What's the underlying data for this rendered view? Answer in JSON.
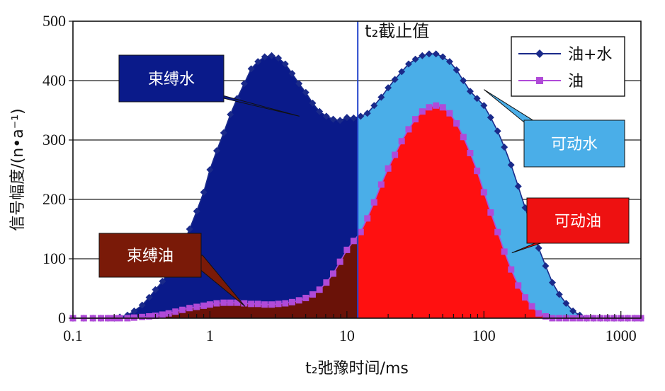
{
  "chart_data": {
    "type": "area",
    "xlabel": "t₂弛豫时间/ms",
    "ylabel": "信号幅度/(n•a⁻¹)",
    "x_scale": "log",
    "xlim": [
      0.1,
      1400
    ],
    "ylim": [
      0,
      500
    ],
    "x_ticks": [
      "0.1",
      "1",
      "10",
      "100",
      "1000"
    ],
    "y_ticks": [
      "0",
      "100",
      "200",
      "300",
      "400",
      "500"
    ],
    "grid": "horizontal",
    "legend_position": "top-right",
    "cutoff": {
      "label": "t₂截止值",
      "x": 12
    },
    "annotations": [
      {
        "id": "bound-water",
        "text": "束缚水",
        "color": "#0a1a8a",
        "target": [
          4.5,
          340
        ]
      },
      {
        "id": "movable-water",
        "text": "可动水",
        "color": "#4aaee8",
        "target": [
          100,
          385
        ]
      },
      {
        "id": "bound-oil",
        "text": "束缚油",
        "color": "#7a1a08",
        "target": [
          1.8,
          20
        ]
      },
      {
        "id": "movable-oil",
        "text": "可动油",
        "color": "#ee1111",
        "target": [
          160,
          110
        ]
      }
    ],
    "series": [
      {
        "name": "油+水",
        "color": "#1a2a8a",
        "marker": "diamond",
        "x": [
          0.1,
          0.12,
          0.14,
          0.16,
          0.18,
          0.2,
          0.22,
          0.25,
          0.28,
          0.32,
          0.36,
          0.4,
          0.45,
          0.5,
          0.56,
          0.63,
          0.71,
          0.8,
          0.9,
          1.0,
          1.12,
          1.26,
          1.41,
          1.58,
          1.78,
          2.0,
          2.24,
          2.51,
          2.82,
          3.16,
          3.55,
          3.98,
          4.47,
          5.01,
          5.62,
          6.31,
          7.08,
          7.94,
          8.91,
          10,
          11.2,
          12.6,
          14.1,
          15.8,
          17.8,
          20,
          22.4,
          25.1,
          28.2,
          31.6,
          35.5,
          39.8,
          44.7,
          50.1,
          56.2,
          63.1,
          70.8,
          79.4,
          89.1,
          100,
          112,
          126,
          141,
          158,
          178,
          200,
          224,
          251,
          282,
          316,
          355,
          398,
          447,
          501,
          562,
          631,
          708,
          794,
          891,
          1000,
          1120,
          1260,
          1400
        ],
        "values": [
          0,
          0,
          0,
          0,
          0,
          0,
          2,
          5,
          12,
          22,
          35,
          48,
          62,
          78,
          98,
          122,
          150,
          180,
          212,
          250,
          282,
          312,
          343,
          370,
          395,
          420,
          432,
          440,
          442,
          438,
          428,
          412,
          395,
          380,
          362,
          348,
          340,
          335,
          333,
          338,
          337,
          340,
          345,
          358,
          372,
          388,
          402,
          415,
          428,
          436,
          442,
          445,
          445,
          440,
          432,
          418,
          400,
          382,
          370,
          358,
          338,
          315,
          288,
          258,
          222,
          186,
          152,
          118,
          88,
          60,
          40,
          25,
          12,
          5,
          0,
          0,
          0,
          0,
          0,
          0,
          0,
          0,
          0
        ]
      },
      {
        "name": "油",
        "color": "#b04ad8",
        "marker": "square",
        "x": [
          0.1,
          0.12,
          0.14,
          0.16,
          0.18,
          0.2,
          0.22,
          0.25,
          0.28,
          0.32,
          0.36,
          0.4,
          0.45,
          0.5,
          0.56,
          0.63,
          0.71,
          0.8,
          0.9,
          1.0,
          1.12,
          1.26,
          1.41,
          1.58,
          1.78,
          2.0,
          2.24,
          2.51,
          2.82,
          3.16,
          3.55,
          3.98,
          4.47,
          5.01,
          5.62,
          6.31,
          7.08,
          7.94,
          8.91,
          10,
          11.2,
          12.6,
          14.1,
          15.8,
          17.8,
          20,
          22.4,
          25.1,
          28.2,
          31.6,
          35.5,
          39.8,
          44.7,
          50.1,
          56.2,
          63.1,
          70.8,
          79.4,
          89.1,
          100,
          112,
          126,
          141,
          158,
          178,
          200,
          224,
          251,
          282,
          316,
          355,
          398,
          447,
          501,
          562,
          631,
          708,
          794,
          891,
          1000,
          1120,
          1260,
          1400
        ],
        "values": [
          0,
          0,
          0,
          0,
          0,
          0,
          0,
          0,
          1,
          2,
          3,
          4,
          6,
          8,
          11,
          14,
          17,
          19,
          21,
          23,
          25,
          26,
          26,
          26,
          25,
          24,
          24,
          23,
          23,
          24,
          25,
          27,
          30,
          34,
          40,
          48,
          60,
          75,
          95,
          115,
          130,
          145,
          168,
          195,
          225,
          252,
          275,
          298,
          318,
          335,
          348,
          355,
          358,
          355,
          345,
          328,
          305,
          278,
          248,
          212,
          178,
          145,
          112,
          82,
          55,
          35,
          20,
          8,
          3,
          0,
          0,
          0,
          0,
          0,
          0,
          0,
          0,
          0,
          0,
          0,
          0,
          0,
          0
        ]
      }
    ]
  }
}
